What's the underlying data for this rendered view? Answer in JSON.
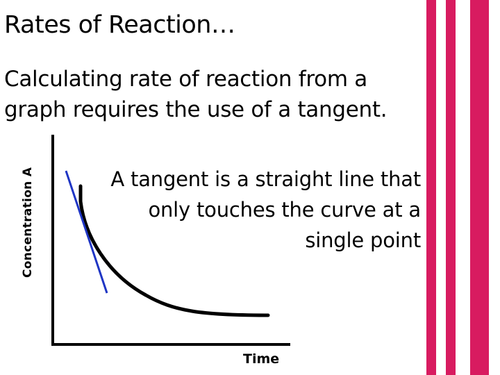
{
  "slide": {
    "title": "Rates of Reaction…",
    "intro": "Calculating rate of reaction from a graph requires the use of a tangent.",
    "callout": "A tangent is a straight line that only touches the curve at a single point"
  },
  "colors": {
    "accent_stripes": "#d81b60",
    "tangent_line": "#1f35c4",
    "curve": "#000000"
  },
  "chart_data": {
    "type": "line",
    "xlabel": "Time",
    "ylabel": "Concentration A",
    "series": [
      {
        "values_description_free": true,
        "x": [
          0,
          1,
          2,
          3,
          4,
          5,
          6,
          7,
          8
        ],
        "y": [
          10,
          6.2,
          4.0,
          2.7,
          1.9,
          1.4,
          1.1,
          1.0,
          1.0
        ]
      }
    ],
    "tangent": {
      "touch_x": 0.5,
      "touch_y": 7.6
    },
    "grid": false
  }
}
